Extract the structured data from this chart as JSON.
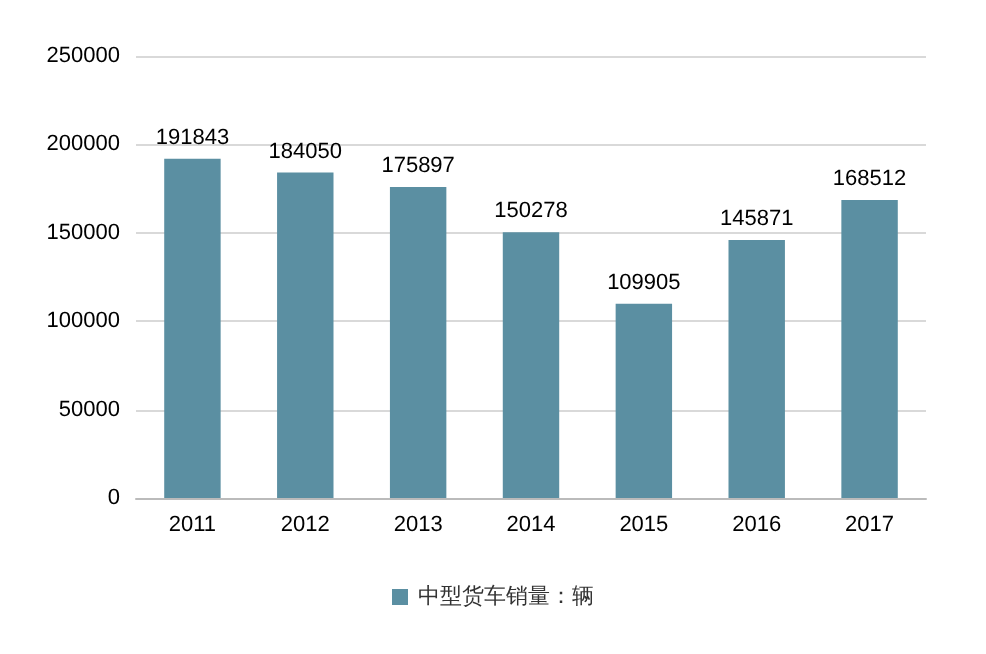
{
  "chart_data": {
    "type": "bar",
    "categories": [
      "2011",
      "2012",
      "2013",
      "2014",
      "2015",
      "2016",
      "2017"
    ],
    "series": [
      {
        "name": "中型货车销量：辆",
        "color": "#5b8fa2",
        "values": [
          191843,
          184050,
          175897,
          150278,
          109905,
          145871,
          168512
        ]
      }
    ],
    "ylim": [
      0,
      250000
    ],
    "yticks": [
      0,
      50000,
      100000,
      150000,
      200000,
      250000
    ],
    "grid": "y",
    "legend": "bottom",
    "data_labels": true
  }
}
